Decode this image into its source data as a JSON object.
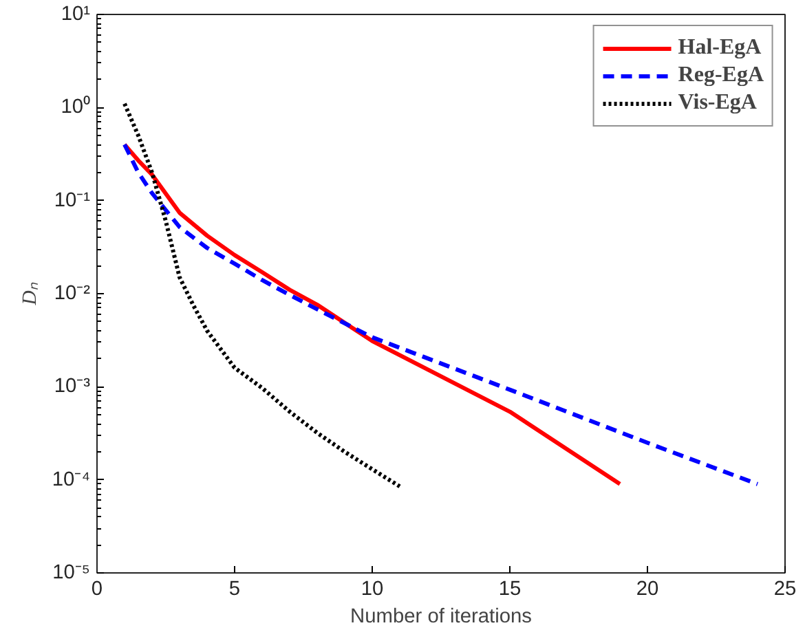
{
  "chart_data": {
    "type": "line",
    "xlabel": "Number of iterations",
    "ylabel": "Dₙ",
    "log": "y",
    "grid": false,
    "legend": "top right",
    "marker": "none",
    "xlim": [
      0,
      25
    ],
    "xticks": [
      0,
      5,
      10,
      15,
      20,
      25
    ],
    "ylim": [
      1e-05,
      10
    ],
    "yticks": [
      {
        "value": 1e-05,
        "label": "10⁻⁵"
      },
      {
        "value": 0.0001,
        "label": "10⁻⁴"
      },
      {
        "value": 0.001,
        "label": "10⁻³"
      },
      {
        "value": 0.01,
        "label": "10⁻²"
      },
      {
        "value": 0.1,
        "label": "10⁻¹"
      },
      {
        "value": 1,
        "label": "10⁰"
      },
      {
        "value": 10,
        "label": "10¹"
      }
    ],
    "series": [
      {
        "name": "Hal-EgA",
        "color": "#ff0000",
        "line_style": "solid",
        "x": [
          1,
          1.5,
          2,
          3,
          4,
          5,
          6,
          7,
          8,
          10,
          15,
          19
        ],
        "values": [
          0.4,
          0.27,
          0.19,
          0.074,
          0.042,
          0.026,
          0.017,
          0.011,
          0.0076,
          0.0031,
          0.00054,
          9e-05
        ]
      },
      {
        "name": "Reg-EgA",
        "color": "#0000ff",
        "line_style": "dashed",
        "x": [
          1,
          1.5,
          2,
          3,
          4,
          5,
          6,
          7,
          8,
          10,
          15,
          20,
          24
        ],
        "values": [
          0.4,
          0.2,
          0.12,
          0.052,
          0.031,
          0.021,
          0.014,
          0.0097,
          0.0068,
          0.0034,
          0.00093,
          0.00025,
          9e-05
        ]
      },
      {
        "name": "Vis-EgA",
        "color": "#000000",
        "line_style": "dotted",
        "x": [
          1,
          1.5,
          2,
          2.5,
          3,
          3.5,
          4,
          5,
          6,
          7,
          8,
          9,
          10,
          11
        ],
        "values": [
          1.1,
          0.5,
          0.2,
          0.06,
          0.015,
          0.0075,
          0.004,
          0.0016,
          0.00097,
          0.00054,
          0.00032,
          0.0002,
          0.00013,
          8.5e-05
        ]
      }
    ]
  }
}
